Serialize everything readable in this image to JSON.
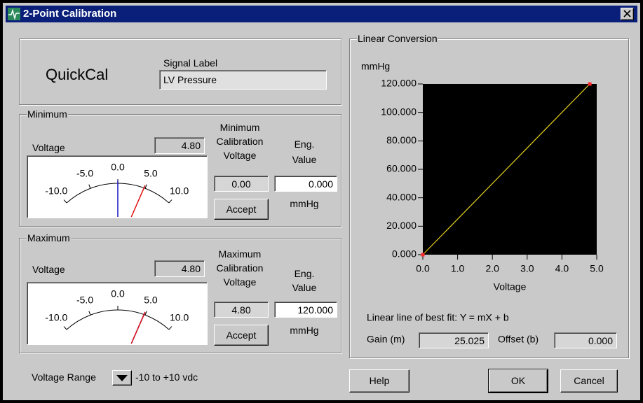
{
  "window": {
    "title": "2-Point Calibration"
  },
  "header": {
    "name": "QuickCal",
    "signal_label_caption": "Signal Label",
    "signal_label": "LV Pressure"
  },
  "meter_scale": [
    {
      "value": -10,
      "label": "-10.0"
    },
    {
      "value": -5,
      "label": "-5.0"
    },
    {
      "value": 0,
      "label": "0.0"
    },
    {
      "value": 5,
      "label": "5.0"
    },
    {
      "value": 10,
      "label": "10.0"
    }
  ],
  "minimum": {
    "title": "Minimum",
    "voltage_caption": "Voltage",
    "voltage": {
      "value": 4.8,
      "label": "4.80"
    },
    "calibration_caption": [
      "Minimum",
      "Calibration",
      "Voltage"
    ],
    "calibration_voltage": {
      "value": 0,
      "label": "0.00"
    },
    "accept": "Accept",
    "eng_caption": [
      "Eng.",
      "Value"
    ],
    "eng_value": {
      "value": 0,
      "label": "0.000"
    },
    "unit": "mmHg"
  },
  "maximum": {
    "title": "Maximum",
    "voltage_caption": "Voltage",
    "voltage": {
      "value": 4.8,
      "label": "4.80"
    },
    "calibration_caption": [
      "Maximum",
      "Calibration",
      "Voltage"
    ],
    "calibration_voltage": {
      "value": 4.8,
      "label": "4.80"
    },
    "accept": "Accept",
    "eng_caption": [
      "Eng.",
      "Value"
    ],
    "eng_value": {
      "value": 120,
      "label": "120.000"
    },
    "unit": "mmHg"
  },
  "voltage_range": {
    "caption": "Voltage Range",
    "value": "-10 to +10 vdc"
  },
  "linear_conversion": {
    "title": "Linear Conversion",
    "y_label": "mmHg",
    "x_label": "Voltage",
    "xlim": [
      0,
      5
    ],
    "ylim": [
      0,
      120
    ],
    "xticks": [
      {
        "value": 0,
        "label": "0.0"
      },
      {
        "value": 1,
        "label": "1.0"
      },
      {
        "value": 2,
        "label": "2.0"
      },
      {
        "value": 3,
        "label": "3.0"
      },
      {
        "value": 4,
        "label": "4.0"
      },
      {
        "value": 5,
        "label": "5.0"
      }
    ],
    "yticks": [
      {
        "value": 0,
        "label": "0.000"
      },
      {
        "value": 20,
        "label": "20.000"
      },
      {
        "value": 40,
        "label": "40.000"
      },
      {
        "value": 60,
        "label": "60.000"
      },
      {
        "value": 80,
        "label": "80.000"
      },
      {
        "value": 100,
        "label": "100.000"
      },
      {
        "value": 120,
        "label": "120.000"
      }
    ],
    "line_color": "#e6d21e",
    "point_color": "#ff2a2a",
    "fit_caption": "Linear line of best fit:  Y = mX + b",
    "gain_caption": "Gain (m)",
    "gain": "25.025",
    "offset_caption": "Offset (b)",
    "offset": "0.000"
  },
  "buttons": [
    "Help",
    "OK",
    "Cancel"
  ]
}
